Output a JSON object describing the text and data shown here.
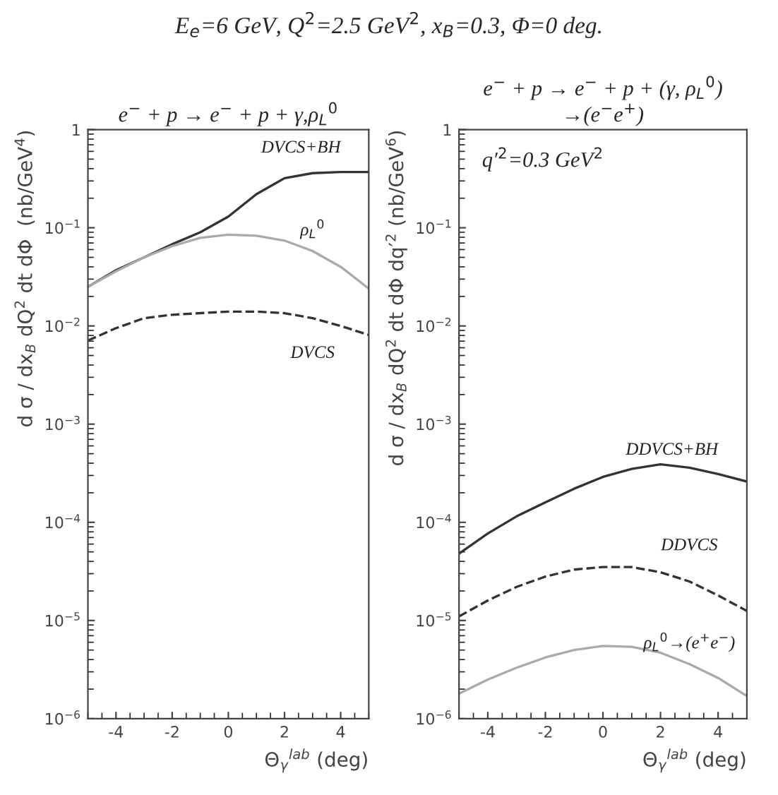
{
  "chart_data": [
    {
      "type": "line",
      "title": "E$_{e}$=6 GeV, Q$^{2}$=2.5 GeV$^{2}$, x$_{B}$=0.3, Φ=0 deg.",
      "subtitle": "e$^{−}$ + p → e$^{−}$ + p + γ,ρ$_{L}$$^{0}$",
      "xlabel": "Θ$_{γ}$$^{lab}$ (deg)",
      "ylabel": "d σ / dx$_{B}$ dQ$^{2}$ dt dΦ  (nb/GeV$^{4}$)",
      "log": "y",
      "grid": false,
      "legend": false,
      "x": [
        -5,
        -4,
        -3,
        -2,
        -1,
        0,
        1,
        2,
        3,
        4,
        5
      ],
      "xlim": [
        -5,
        5
      ],
      "xticks": [
        -4,
        -2,
        0,
        2,
        4
      ],
      "ylim": [
        1e-06,
        1
      ],
      "yticks": [
        {
          "value": 1e-06,
          "label": "10$^{−6}$"
        },
        {
          "value": 1e-05,
          "label": "10$^{−5}$"
        },
        {
          "value": 0.0001,
          "label": "10$^{−4}$"
        },
        {
          "value": 0.001,
          "label": "10$^{−3}$"
        },
        {
          "value": 0.01,
          "label": "10$^{−2}$"
        },
        {
          "value": 0.1,
          "label": "10$^{−1}$"
        },
        1
      ],
      "series": [
        {
          "name": "DVCS+BH",
          "color": "#333333",
          "line_style": "solid",
          "values": [
            0.025,
            0.037,
            0.05,
            0.068,
            0.09,
            0.13,
            0.22,
            0.32,
            0.36,
            0.37,
            0.37
          ]
        },
        {
          "name": "ρ$_{L}$$^{0}$",
          "color": "#aaaaaa",
          "line_style": "solid",
          "values": [
            0.025,
            0.036,
            0.05,
            0.065,
            0.079,
            0.085,
            0.083,
            0.074,
            0.058,
            0.04,
            0.024
          ]
        },
        {
          "name": "DVCS",
          "color": "#333333",
          "line_style": "dashed",
          "values": [
            0.0071,
            0.0095,
            0.012,
            0.013,
            0.0135,
            0.014,
            0.014,
            0.0135,
            0.012,
            0.01,
            0.0081
          ]
        }
      ]
    },
    {
      "type": "line",
      "subtitle": "e$^{−}$ + p → e$^{−}$ + p + (γ, ρ$_{L}$$^{0}$)\n→(e$^{−}$e$^{+}$)",
      "xlabel": "Θ$_{γ}$$^{lab}$ (deg)",
      "ylabel": "d σ / dx$_{B}$ dQ$^{2}$ dt dΦ dq′$^{2}$ (nb/GeV$^{6}$)",
      "annotations": [
        "q′$^{2}$=0.3 GeV$^{2}$"
      ],
      "log": "y",
      "grid": false,
      "legend": false,
      "x": [
        -5,
        -4,
        -3,
        -2,
        -1,
        0,
        1,
        2,
        3,
        4,
        5
      ],
      "xlim": [
        -5,
        5
      ],
      "xticks": [
        -4,
        -2,
        0,
        2,
        4
      ],
      "ylim": [
        1e-06,
        1
      ],
      "yticks": [
        {
          "value": 1e-06,
          "label": "10$^{−6}$"
        },
        {
          "value": 1e-05,
          "label": "10$^{−5}$"
        },
        {
          "value": 0.0001,
          "label": "10$^{−4}$"
        },
        {
          "value": 0.001,
          "label": "10$^{−3}$"
        },
        {
          "value": 0.01,
          "label": "10$^{−2}$"
        },
        {
          "value": 0.1,
          "label": "10$^{−1}$"
        },
        1
      ],
      "series": [
        {
          "name": "DDVCS+BH",
          "color": "#333333",
          "line_style": "solid",
          "values": [
            4.8e-05,
            7.7e-05,
            0.000115,
            0.00016,
            0.00022,
            0.00029,
            0.00035,
            0.00039,
            0.00036,
            0.00031,
            0.00026
          ]
        },
        {
          "name": "DDVCS",
          "color": "#333333",
          "line_style": "dashed",
          "values": [
            1.1e-05,
            1.6e-05,
            2.2e-05,
            2.8e-05,
            3.3e-05,
            3.5e-05,
            3.5e-05,
            3.1e-05,
            2.5e-05,
            1.8e-05,
            1.25e-05
          ]
        },
        {
          "name": "ρ$_{L}$$^{0}$→(e$^{+}$e$^{−}$)",
          "color": "#aaaaaa",
          "line_style": "solid",
          "values": [
            1.8e-06,
            2.5e-06,
            3.3e-06,
            4.2e-06,
            5e-06,
            5.5e-06,
            5.4e-06,
            4.7e-06,
            3.6e-06,
            2.6e-06,
            1.7e-06
          ]
        }
      ]
    }
  ]
}
